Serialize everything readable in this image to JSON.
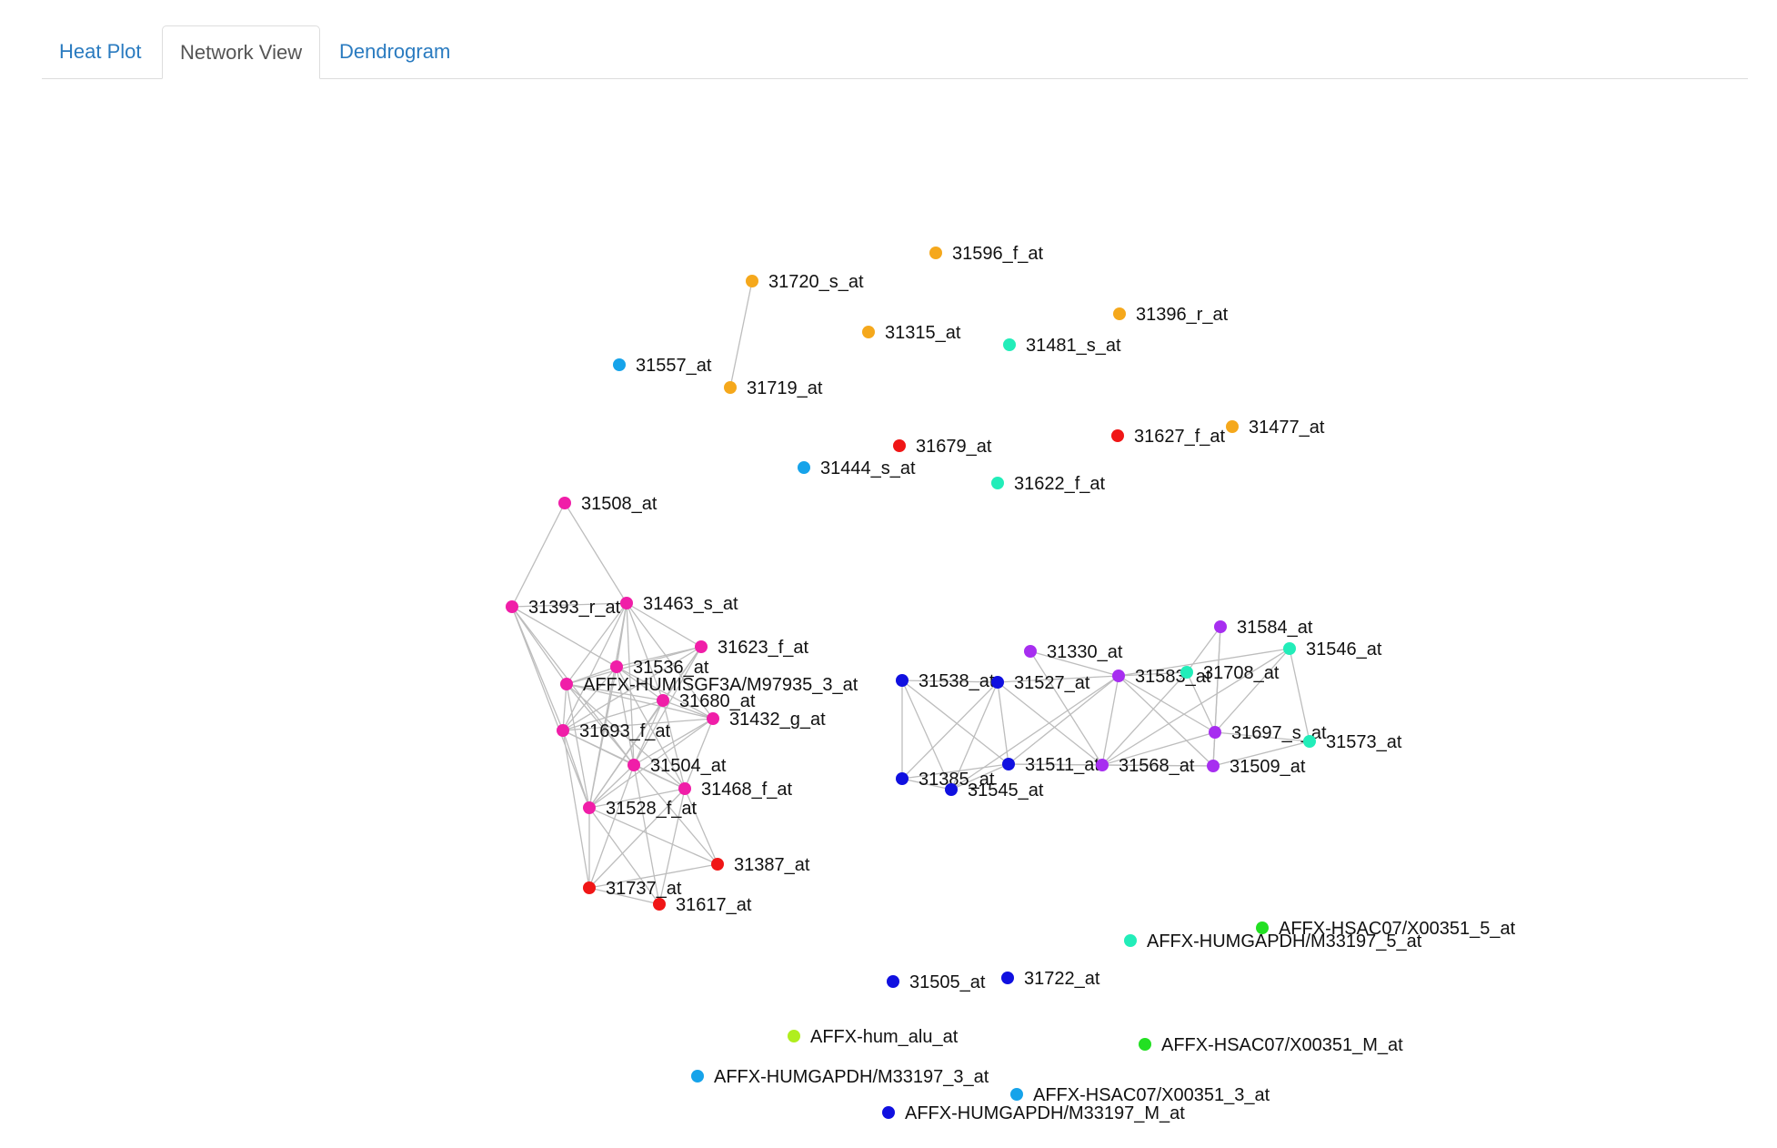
{
  "tabs": [
    {
      "label": "Heat Plot",
      "active": false
    },
    {
      "label": "Network View",
      "active": true
    },
    {
      "label": "Dendrogram",
      "active": false
    }
  ],
  "colors": {
    "orange": "#f5a81c",
    "teal": "#22edb9",
    "sky": "#16a3ea",
    "red": "#f01616",
    "pink": "#f01ea8",
    "blue": "#1010e0",
    "purple": "#a72ef0",
    "green": "#22e022",
    "lime": "#b0ee1e"
  },
  "nodes": [
    {
      "id": "31596_f_at",
      "label": "31596_f_at",
      "color": "orange"
    },
    {
      "id": "31720_s_at",
      "label": "31720_s_at",
      "color": "orange"
    },
    {
      "id": "31396_r_at",
      "label": "31396_r_at",
      "color": "orange"
    },
    {
      "id": "31315_at",
      "label": "31315_at",
      "color": "orange"
    },
    {
      "id": "31481_s_at",
      "label": "31481_s_at",
      "color": "teal"
    },
    {
      "id": "31557_at",
      "label": "31557_at",
      "color": "sky"
    },
    {
      "id": "31719_at",
      "label": "31719_at",
      "color": "orange"
    },
    {
      "id": "31477_at",
      "label": "31477_at",
      "color": "orange"
    },
    {
      "id": "31679_at",
      "label": "31679_at",
      "color": "red"
    },
    {
      "id": "31627_f_at",
      "label": "31627_f_at",
      "color": "red"
    },
    {
      "id": "31444_s_at",
      "label": "31444_s_at",
      "color": "sky"
    },
    {
      "id": "31622_f_at",
      "label": "31622_f_at",
      "color": "teal"
    },
    {
      "id": "31508_at",
      "label": "31508_at",
      "color": "pink"
    },
    {
      "id": "31393_r_at",
      "label": "31393_r_at",
      "color": "pink"
    },
    {
      "id": "31463_s_at",
      "label": "31463_s_at",
      "color": "pink"
    },
    {
      "id": "31623_f_at",
      "label": "31623_f_at",
      "color": "pink"
    },
    {
      "id": "31536_at",
      "label": "31536_at",
      "color": "pink"
    },
    {
      "id": "AFFX-HUMISGF3A/M97935_3_at",
      "label": "AFFX-HUMISGF3A/M97935_3_at",
      "color": "pink"
    },
    {
      "id": "31680_at",
      "label": "31680_at",
      "color": "pink"
    },
    {
      "id": "31432_g_at",
      "label": "31432_g_at",
      "color": "pink"
    },
    {
      "id": "31693_f_at",
      "label": "31693_f_at",
      "color": "pink"
    },
    {
      "id": "31504_at",
      "label": "31504_at",
      "color": "pink"
    },
    {
      "id": "31468_f_at",
      "label": "31468_f_at",
      "color": "pink"
    },
    {
      "id": "31528_f_at",
      "label": "31528_f_at",
      "color": "pink"
    },
    {
      "id": "31387_at",
      "label": "31387_at",
      "color": "red"
    },
    {
      "id": "31737_at",
      "label": "31737_at",
      "color": "red"
    },
    {
      "id": "31617_at",
      "label": "31617_at",
      "color": "red"
    },
    {
      "id": "31584_at",
      "label": "31584_at",
      "color": "purple"
    },
    {
      "id": "31546_at",
      "label": "31546_at",
      "color": "teal"
    },
    {
      "id": "31330_at",
      "label": "31330_at",
      "color": "purple"
    },
    {
      "id": "31538_at",
      "label": "31538_at",
      "color": "blue"
    },
    {
      "id": "31527_at",
      "label": "31527_at",
      "color": "blue"
    },
    {
      "id": "31583_at",
      "label": "31583_at",
      "color": "purple"
    },
    {
      "id": "31708_at",
      "label": "31708_at",
      "color": "teal"
    },
    {
      "id": "31697_s_at",
      "label": "31697_s_at",
      "color": "purple"
    },
    {
      "id": "31573_at",
      "label": "31573_at",
      "color": "teal"
    },
    {
      "id": "31511_at",
      "label": "31511_at",
      "color": "blue"
    },
    {
      "id": "31568_at",
      "label": "31568_at",
      "color": "purple"
    },
    {
      "id": "31509_at",
      "label": "31509_at",
      "color": "purple"
    },
    {
      "id": "31385_at",
      "label": "31385_at",
      "color": "blue"
    },
    {
      "id": "31545_at",
      "label": "31545_at",
      "color": "blue"
    },
    {
      "id": "AFFX-HSAC07/X00351_5_at",
      "label": "AFFX-HSAC07/X00351_5_at",
      "color": "green"
    },
    {
      "id": "AFFX-HUMGAPDH/M33197_5_at",
      "label": "AFFX-HUMGAPDH/M33197_5_at",
      "color": "teal"
    },
    {
      "id": "31505_at",
      "label": "31505_at",
      "color": "blue"
    },
    {
      "id": "31722_at",
      "label": "31722_at",
      "color": "blue"
    },
    {
      "id": "AFFX-hum_alu_at",
      "label": "AFFX-hum_alu_at",
      "color": "lime"
    },
    {
      "id": "AFFX-HSAC07/X00351_M_at",
      "label": "AFFX-HSAC07/X00351_M_at",
      "color": "green"
    },
    {
      "id": "AFFX-HUMGAPDH/M33197_3_at",
      "label": "AFFX-HUMGAPDH/M33197_3_at",
      "color": "sky"
    },
    {
      "id": "AFFX-HSAC07/X00351_3_at",
      "label": "AFFX-HSAC07/X00351_3_at",
      "color": "sky"
    },
    {
      "id": "AFFX-HUMGAPDH/M33197_M_at",
      "label": "AFFX-HUMGAPDH/M33197_M_at",
      "color": "blue"
    }
  ],
  "edges": [
    [
      "31720_s_at",
      "31719_at"
    ],
    [
      "31508_at",
      "31393_r_at"
    ],
    [
      "31508_at",
      "31463_s_at"
    ],
    [
      "31393_r_at",
      "31463_s_at"
    ],
    [
      "31393_r_at",
      "31536_at"
    ],
    [
      "31393_r_at",
      "AFFX-HUMISGF3A/M97935_3_at"
    ],
    [
      "31393_r_at",
      "31693_f_at"
    ],
    [
      "31393_r_at",
      "31504_at"
    ],
    [
      "31393_r_at",
      "31528_f_at"
    ],
    [
      "31463_s_at",
      "31623_f_at"
    ],
    [
      "31463_s_at",
      "31536_at"
    ],
    [
      "31463_s_at",
      "AFFX-HUMISGF3A/M97935_3_at"
    ],
    [
      "31463_s_at",
      "31680_at"
    ],
    [
      "31463_s_at",
      "31432_g_at"
    ],
    [
      "31463_s_at",
      "31693_f_at"
    ],
    [
      "31463_s_at",
      "31504_at"
    ],
    [
      "31463_s_at",
      "31528_f_at"
    ],
    [
      "31623_f_at",
      "31536_at"
    ],
    [
      "31623_f_at",
      "AFFX-HUMISGF3A/M97935_3_at"
    ],
    [
      "31623_f_at",
      "31680_at"
    ],
    [
      "31623_f_at",
      "31693_f_at"
    ],
    [
      "31623_f_at",
      "31504_at"
    ],
    [
      "31623_f_at",
      "31528_f_at"
    ],
    [
      "31536_at",
      "AFFX-HUMISGF3A/M97935_3_at"
    ],
    [
      "31536_at",
      "31680_at"
    ],
    [
      "31536_at",
      "31432_g_at"
    ],
    [
      "31536_at",
      "31693_f_at"
    ],
    [
      "31536_at",
      "31504_at"
    ],
    [
      "31536_at",
      "31468_f_at"
    ],
    [
      "31536_at",
      "31528_f_at"
    ],
    [
      "AFFX-HUMISGF3A/M97935_3_at",
      "31680_at"
    ],
    [
      "AFFX-HUMISGF3A/M97935_3_at",
      "31432_g_at"
    ],
    [
      "AFFX-HUMISGF3A/M97935_3_at",
      "31693_f_at"
    ],
    [
      "AFFX-HUMISGF3A/M97935_3_at",
      "31504_at"
    ],
    [
      "AFFX-HUMISGF3A/M97935_3_at",
      "31468_f_at"
    ],
    [
      "AFFX-HUMISGF3A/M97935_3_at",
      "31528_f_at"
    ],
    [
      "31680_at",
      "31432_g_at"
    ],
    [
      "31680_at",
      "31693_f_at"
    ],
    [
      "31680_at",
      "31504_at"
    ],
    [
      "31680_at",
      "31468_f_at"
    ],
    [
      "31680_at",
      "31528_f_at"
    ],
    [
      "31432_g_at",
      "31693_f_at"
    ],
    [
      "31432_g_at",
      "31504_at"
    ],
    [
      "31432_g_at",
      "31468_f_at"
    ],
    [
      "31432_g_at",
      "31528_f_at"
    ],
    [
      "31693_f_at",
      "31504_at"
    ],
    [
      "31693_f_at",
      "31468_f_at"
    ],
    [
      "31693_f_at",
      "31528_f_at"
    ],
    [
      "31693_f_at",
      "31737_at"
    ],
    [
      "31504_at",
      "31468_f_at"
    ],
    [
      "31504_at",
      "31528_f_at"
    ],
    [
      "31504_at",
      "31387_at"
    ],
    [
      "31504_at",
      "31737_at"
    ],
    [
      "31504_at",
      "31617_at"
    ],
    [
      "31468_f_at",
      "31528_f_at"
    ],
    [
      "31468_f_at",
      "31387_at"
    ],
    [
      "31468_f_at",
      "31737_at"
    ],
    [
      "31468_f_at",
      "31617_at"
    ],
    [
      "31528_f_at",
      "31387_at"
    ],
    [
      "31528_f_at",
      "31737_at"
    ],
    [
      "31528_f_at",
      "31617_at"
    ],
    [
      "31737_at",
      "31617_at"
    ],
    [
      "31737_at",
      "31387_at"
    ],
    [
      "31538_at",
      "31527_at"
    ],
    [
      "31538_at",
      "31385_at"
    ],
    [
      "31538_at",
      "31545_at"
    ],
    [
      "31538_at",
      "31511_at"
    ],
    [
      "31527_at",
      "31385_at"
    ],
    [
      "31527_at",
      "31545_at"
    ],
    [
      "31527_at",
      "31511_at"
    ],
    [
      "31527_at",
      "31583_at"
    ],
    [
      "31527_at",
      "31568_at"
    ],
    [
      "31385_at",
      "31545_at"
    ],
    [
      "31385_at",
      "31511_at"
    ],
    [
      "31545_at",
      "31511_at"
    ],
    [
      "31545_at",
      "31583_at"
    ],
    [
      "31511_at",
      "31568_at"
    ],
    [
      "31511_at",
      "31583_at"
    ],
    [
      "31511_at",
      "31509_at"
    ],
    [
      "31330_at",
      "31583_at"
    ],
    [
      "31330_at",
      "31568_at"
    ],
    [
      "31583_at",
      "31568_at"
    ],
    [
      "31583_at",
      "31697_s_at"
    ],
    [
      "31583_at",
      "31509_at"
    ],
    [
      "31583_at",
      "31546_at"
    ],
    [
      "31583_at",
      "31708_at"
    ],
    [
      "31584_at",
      "31697_s_at"
    ],
    [
      "31584_at",
      "31509_at"
    ],
    [
      "31584_at",
      "31708_at"
    ],
    [
      "31546_at",
      "31697_s_at"
    ],
    [
      "31546_at",
      "31573_at"
    ],
    [
      "31546_at",
      "31568_at"
    ],
    [
      "31708_at",
      "31697_s_at"
    ],
    [
      "31708_at",
      "31568_at"
    ],
    [
      "31697_s_at",
      "31573_at"
    ],
    [
      "31697_s_at",
      "31509_at"
    ],
    [
      "31697_s_at",
      "31568_at"
    ],
    [
      "31568_at",
      "31509_at"
    ],
    [
      "31509_at",
      "31573_at"
    ]
  ]
}
